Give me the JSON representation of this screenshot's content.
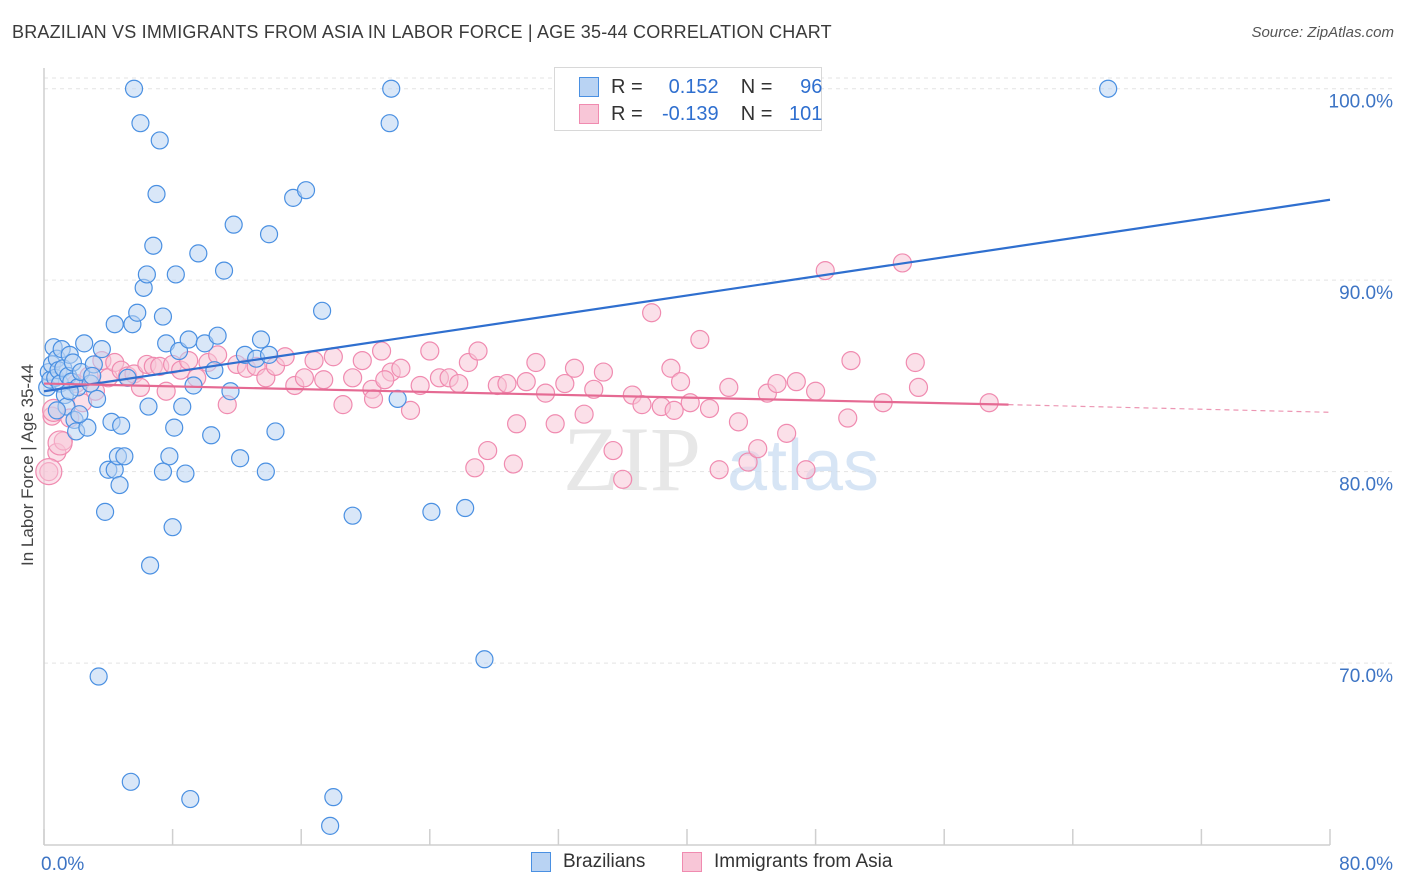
{
  "title": "BRAZILIAN VS IMMIGRANTS FROM ASIA IN LABOR FORCE | AGE 35-44 CORRELATION CHART",
  "source": "Source: ZipAtlas.com",
  "watermark": {
    "zip": "ZIP",
    "atlas": "atlas"
  },
  "colors": {
    "blue": "#4a90e2",
    "blue_line": "#2f6fcf",
    "pink": "#f08bb0",
    "pink_line": "#e56a93",
    "tick_text": "#3d74c4",
    "grid": "#e3e3e3"
  },
  "legend_top": {
    "rows": [
      {
        "r_label": "R =",
        "r_value": "0.152",
        "n_label": "N =",
        "n_value": "96"
      },
      {
        "r_label": "R =",
        "r_value": "-0.139",
        "n_label": "N =",
        "n_value": "101"
      }
    ]
  },
  "chart_data": {
    "type": "scatter",
    "title": "BRAZILIAN VS IMMIGRANTS FROM ASIA IN LABOR FORCE | AGE 35-44 CORRELATION CHART",
    "xlabel": "",
    "ylabel": "In Labor Force | Age 35-44",
    "xlim": [
      0,
      80
    ],
    "ylim": [
      60.5,
      101.5
    ],
    "x_tick_labels": [
      "0.0%",
      "80.0%"
    ],
    "y_ticks": [
      70,
      80,
      90,
      100
    ],
    "y_tick_labels": [
      "70.0%",
      "80.0%",
      "90.0%",
      "100.0%"
    ],
    "grid": true,
    "legend": "bottom-center",
    "series": [
      {
        "name": "Brazilians",
        "color": "#4a90e2",
        "trend": {
          "x": [
            0,
            80
          ],
          "y": [
            84.2,
            94.2
          ]
        },
        "points": [
          [
            0.2,
            84.4
          ],
          [
            0.3,
            85.2
          ],
          [
            0.4,
            84.8
          ],
          [
            0.5,
            85.6
          ],
          [
            0.6,
            86.5
          ],
          [
            0.7,
            84.9
          ],
          [
            0.8,
            85.9
          ],
          [
            0.9,
            85.3
          ],
          [
            1.0,
            84.6
          ],
          [
            1.1,
            86.4
          ],
          [
            1.2,
            85.4
          ],
          [
            1.3,
            84.0
          ],
          [
            1.4,
            83.4
          ],
          [
            1.5,
            85.0
          ],
          [
            1.6,
            86.1
          ],
          [
            1.7,
            84.7
          ],
          [
            1.8,
            85.7
          ],
          [
            1.9,
            82.7
          ],
          [
            2.0,
            82.1
          ],
          [
            2.1,
            84.4
          ],
          [
            2.3,
            85.2
          ],
          [
            2.5,
            86.7
          ],
          [
            2.7,
            82.3
          ],
          [
            2.9,
            84.6
          ],
          [
            3.1,
            85.6
          ],
          [
            3.3,
            83.8
          ],
          [
            3.6,
            86.4
          ],
          [
            3.8,
            77.9
          ],
          [
            4.0,
            80.1
          ],
          [
            4.2,
            82.6
          ],
          [
            4.4,
            80.1
          ],
          [
            4.6,
            80.8
          ],
          [
            4.8,
            82.4
          ],
          [
            5.0,
            80.8
          ],
          [
            5.2,
            84.9
          ],
          [
            5.5,
            87.7
          ],
          [
            5.8,
            88.3
          ],
          [
            6.0,
            98.2
          ],
          [
            6.2,
            89.6
          ],
          [
            6.4,
            90.3
          ],
          [
            6.6,
            75.1
          ],
          [
            6.8,
            91.8
          ],
          [
            7.0,
            94.5
          ],
          [
            7.2,
            97.3
          ],
          [
            7.4,
            88.1
          ],
          [
            7.6,
            86.7
          ],
          [
            7.8,
            80.8
          ],
          [
            8.0,
            77.1
          ],
          [
            8.2,
            90.3
          ],
          [
            8.4,
            86.3
          ],
          [
            8.6,
            83.4
          ],
          [
            8.8,
            79.9
          ],
          [
            9.0,
            86.9
          ],
          [
            9.3,
            84.5
          ],
          [
            9.6,
            91.4
          ],
          [
            10.0,
            86.7
          ],
          [
            10.4,
            81.9
          ],
          [
            10.8,
            87.1
          ],
          [
            11.2,
            90.5
          ],
          [
            11.8,
            92.9
          ],
          [
            12.5,
            86.1
          ],
          [
            13.2,
            85.9
          ],
          [
            13.5,
            86.9
          ],
          [
            14.0,
            92.4
          ],
          [
            14.4,
            82.1
          ],
          [
            13.8,
            80.0
          ],
          [
            14.0,
            86.1
          ],
          [
            15.5,
            94.3
          ],
          [
            16.3,
            94.7
          ],
          [
            17.3,
            88.4
          ],
          [
            17.8,
            61.5
          ],
          [
            18.0,
            63.0
          ],
          [
            19.2,
            77.7
          ],
          [
            21.5,
            98.2
          ],
          [
            21.6,
            100.0
          ],
          [
            22.0,
            83.8
          ],
          [
            24.1,
            77.9
          ],
          [
            26.2,
            78.1
          ],
          [
            27.4,
            70.2
          ],
          [
            66.2,
            100.0
          ],
          [
            5.6,
            100.0
          ],
          [
            3.4,
            69.3
          ],
          [
            5.4,
            63.8
          ],
          [
            9.1,
            62.9
          ],
          [
            7.4,
            80.0
          ],
          [
            4.7,
            79.3
          ],
          [
            8.1,
            82.3
          ],
          [
            10.6,
            85.3
          ],
          [
            11.6,
            84.2
          ],
          [
            12.2,
            80.7
          ],
          [
            6.5,
            83.4
          ],
          [
            2.2,
            83.0
          ],
          [
            0.8,
            83.2
          ],
          [
            1.6,
            84.2
          ],
          [
            3.0,
            85.0
          ],
          [
            4.4,
            87.7
          ]
        ]
      },
      {
        "name": "Immigrants from Asia",
        "color": "#f08bb0",
        "trend": {
          "x": [
            0,
            60
          ],
          "y": [
            84.6,
            83.5
          ]
        },
        "trend_dashed": {
          "x": [
            60,
            80
          ],
          "y": [
            83.5,
            83.1
          ]
        },
        "points": [
          [
            0.3,
            80.0
          ],
          [
            0.5,
            82.9
          ],
          [
            0.8,
            81.0
          ],
          [
            1.2,
            81.6
          ],
          [
            1.6,
            82.8
          ],
          [
            2.0,
            84.6
          ],
          [
            2.4,
            83.6
          ],
          [
            2.8,
            85.0
          ],
          [
            3.2,
            84.2
          ],
          [
            3.6,
            85.8
          ],
          [
            4.0,
            84.9
          ],
          [
            4.4,
            85.7
          ],
          [
            4.8,
            85.3
          ],
          [
            5.2,
            85.0
          ],
          [
            5.6,
            85.1
          ],
          [
            6.0,
            84.4
          ],
          [
            6.4,
            85.6
          ],
          [
            6.8,
            85.5
          ],
          [
            7.2,
            85.5
          ],
          [
            7.6,
            84.2
          ],
          [
            8.0,
            85.6
          ],
          [
            8.5,
            85.3
          ],
          [
            9.0,
            85.8
          ],
          [
            9.5,
            84.9
          ],
          [
            10.2,
            85.7
          ],
          [
            10.8,
            86.1
          ],
          [
            11.4,
            83.5
          ],
          [
            12.0,
            85.6
          ],
          [
            12.6,
            85.4
          ],
          [
            13.2,
            85.5
          ],
          [
            13.8,
            84.9
          ],
          [
            14.4,
            85.5
          ],
          [
            15.0,
            86.0
          ],
          [
            15.6,
            84.5
          ],
          [
            16.2,
            84.9
          ],
          [
            16.8,
            85.8
          ],
          [
            17.4,
            84.8
          ],
          [
            18.0,
            86.0
          ],
          [
            18.6,
            83.5
          ],
          [
            19.2,
            84.9
          ],
          [
            19.8,
            85.8
          ],
          [
            20.4,
            84.3
          ],
          [
            21.0,
            86.3
          ],
          [
            21.6,
            85.2
          ],
          [
            22.2,
            85.4
          ],
          [
            22.8,
            83.2
          ],
          [
            23.4,
            84.5
          ],
          [
            24.0,
            86.3
          ],
          [
            24.6,
            84.9
          ],
          [
            25.2,
            84.9
          ],
          [
            25.8,
            84.6
          ],
          [
            26.4,
            85.7
          ],
          [
            27.0,
            86.3
          ],
          [
            27.6,
            81.1
          ],
          [
            28.2,
            84.5
          ],
          [
            28.8,
            84.6
          ],
          [
            29.4,
            82.5
          ],
          [
            30.0,
            84.7
          ],
          [
            30.6,
            85.7
          ],
          [
            31.2,
            84.1
          ],
          [
            31.8,
            82.5
          ],
          [
            32.4,
            84.6
          ],
          [
            33.0,
            85.4
          ],
          [
            33.6,
            83.0
          ],
          [
            34.2,
            84.3
          ],
          [
            34.8,
            85.2
          ],
          [
            35.4,
            81.1
          ],
          [
            36.0,
            79.6
          ],
          [
            36.6,
            84.0
          ],
          [
            37.2,
            83.5
          ],
          [
            37.8,
            88.3
          ],
          [
            38.4,
            83.4
          ],
          [
            39.0,
            85.4
          ],
          [
            39.6,
            84.7
          ],
          [
            40.2,
            83.6
          ],
          [
            40.8,
            86.9
          ],
          [
            41.4,
            83.3
          ],
          [
            42.0,
            80.1
          ],
          [
            42.6,
            84.4
          ],
          [
            43.2,
            82.6
          ],
          [
            43.8,
            80.5
          ],
          [
            44.4,
            81.2
          ],
          [
            45.0,
            84.1
          ],
          [
            45.6,
            84.6
          ],
          [
            46.2,
            82.0
          ],
          [
            46.8,
            84.7
          ],
          [
            47.4,
            80.1
          ],
          [
            48.0,
            84.2
          ],
          [
            48.6,
            90.5
          ],
          [
            50.2,
            85.8
          ],
          [
            52.2,
            83.6
          ],
          [
            53.4,
            90.9
          ],
          [
            54.4,
            84.4
          ],
          [
            58.8,
            83.6
          ],
          [
            54.2,
            85.7
          ],
          [
            21.2,
            84.8
          ],
          [
            20.5,
            83.8
          ],
          [
            26.8,
            80.2
          ],
          [
            29.2,
            80.4
          ],
          [
            39.2,
            83.2
          ],
          [
            50.0,
            82.8
          ]
        ]
      }
    ]
  },
  "legend_bottom": [
    {
      "label": "Brazilians"
    },
    {
      "label": "Immigrants from Asia"
    }
  ]
}
